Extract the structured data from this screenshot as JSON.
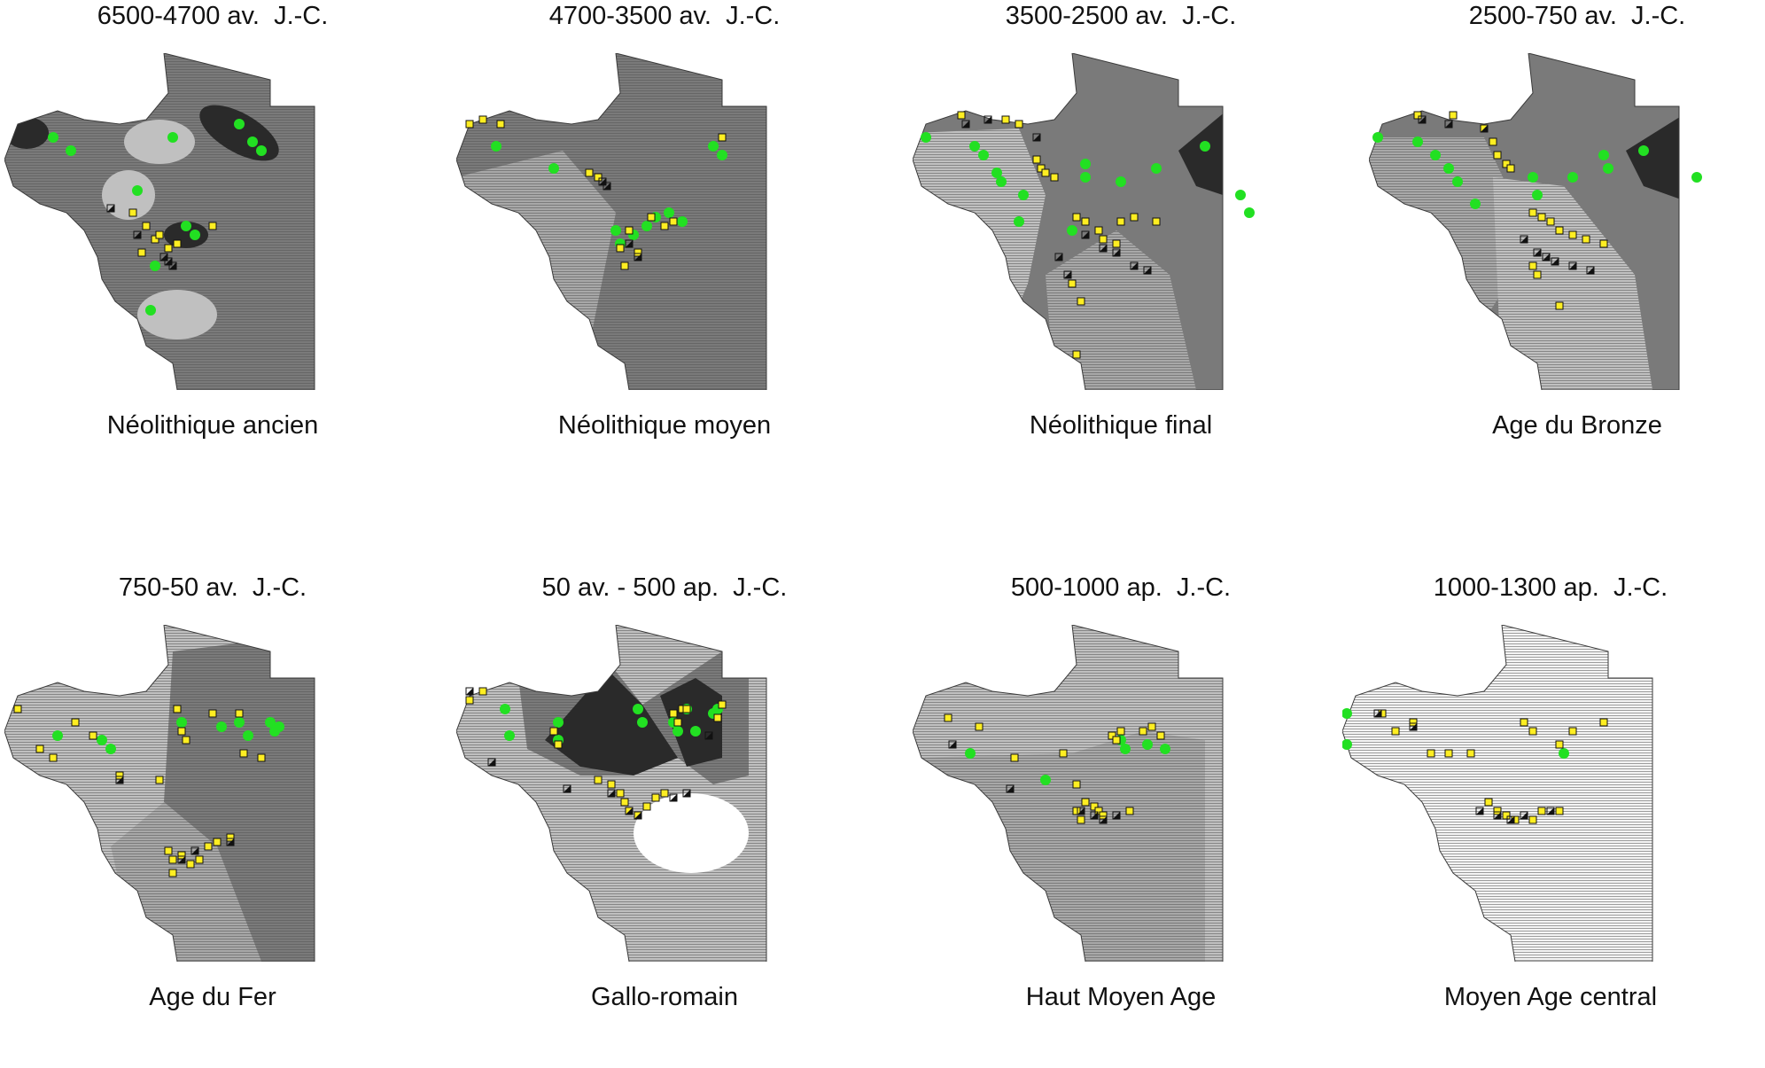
{
  "figure": {
    "panels": [
      {
        "period": "6500-4700 av.  J.-C.",
        "name": "Néolithique ancien"
      },
      {
        "period": "4700-3500 av.  J.-C.",
        "name": "Néolithique moyen"
      },
      {
        "period": "3500-2500 av.  J.-C.",
        "name": "Néolithique final"
      },
      {
        "period": "2500-750 av.  J.-C.",
        "name": "Age du Bronze"
      },
      {
        "period": "750-50 av.  J.-C.",
        "name": "Age du Fer"
      },
      {
        "period": "50 av. - 500 ap.  J.-C.",
        "name": "Gallo-romain"
      },
      {
        "period": "500-1000 ap.  J.-C.",
        "name": "Haut Moyen Age"
      },
      {
        "period": "1000-1300 ap.  J.-C.",
        "name": "Moyen Age central"
      }
    ]
  },
  "colors": {
    "zone_dark": "#2a2a2a",
    "zone_medium": "#7a7a7a",
    "zone_light": "#c0c0c0",
    "zone_hatched": "#a8a8a8",
    "site_green": "#22e022",
    "site_yellow": "#ffee22",
    "site_outline": "#111111",
    "coastline": "#3a3a3a"
  }
}
